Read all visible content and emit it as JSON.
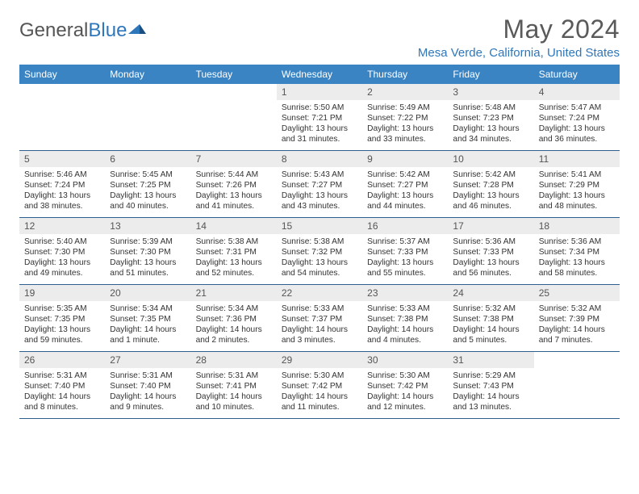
{
  "logo": {
    "text1": "General",
    "text2": "Blue"
  },
  "title": "May 2024",
  "location": "Mesa Verde, California, United States",
  "header_bg": "#3b84c4",
  "accent_color": "#2f77bb",
  "daynum_bg": "#ececec",
  "weekdays": [
    "Sunday",
    "Monday",
    "Tuesday",
    "Wednesday",
    "Thursday",
    "Friday",
    "Saturday"
  ],
  "weeks": [
    [
      {
        "n": "",
        "lines": []
      },
      {
        "n": "",
        "lines": []
      },
      {
        "n": "",
        "lines": []
      },
      {
        "n": "1",
        "lines": [
          "Sunrise: 5:50 AM",
          "Sunset: 7:21 PM",
          "Daylight: 13 hours",
          "and 31 minutes."
        ]
      },
      {
        "n": "2",
        "lines": [
          "Sunrise: 5:49 AM",
          "Sunset: 7:22 PM",
          "Daylight: 13 hours",
          "and 33 minutes."
        ]
      },
      {
        "n": "3",
        "lines": [
          "Sunrise: 5:48 AM",
          "Sunset: 7:23 PM",
          "Daylight: 13 hours",
          "and 34 minutes."
        ]
      },
      {
        "n": "4",
        "lines": [
          "Sunrise: 5:47 AM",
          "Sunset: 7:24 PM",
          "Daylight: 13 hours",
          "and 36 minutes."
        ]
      }
    ],
    [
      {
        "n": "5",
        "lines": [
          "Sunrise: 5:46 AM",
          "Sunset: 7:24 PM",
          "Daylight: 13 hours",
          "and 38 minutes."
        ]
      },
      {
        "n": "6",
        "lines": [
          "Sunrise: 5:45 AM",
          "Sunset: 7:25 PM",
          "Daylight: 13 hours",
          "and 40 minutes."
        ]
      },
      {
        "n": "7",
        "lines": [
          "Sunrise: 5:44 AM",
          "Sunset: 7:26 PM",
          "Daylight: 13 hours",
          "and 41 minutes."
        ]
      },
      {
        "n": "8",
        "lines": [
          "Sunrise: 5:43 AM",
          "Sunset: 7:27 PM",
          "Daylight: 13 hours",
          "and 43 minutes."
        ]
      },
      {
        "n": "9",
        "lines": [
          "Sunrise: 5:42 AM",
          "Sunset: 7:27 PM",
          "Daylight: 13 hours",
          "and 44 minutes."
        ]
      },
      {
        "n": "10",
        "lines": [
          "Sunrise: 5:42 AM",
          "Sunset: 7:28 PM",
          "Daylight: 13 hours",
          "and 46 minutes."
        ]
      },
      {
        "n": "11",
        "lines": [
          "Sunrise: 5:41 AM",
          "Sunset: 7:29 PM",
          "Daylight: 13 hours",
          "and 48 minutes."
        ]
      }
    ],
    [
      {
        "n": "12",
        "lines": [
          "Sunrise: 5:40 AM",
          "Sunset: 7:30 PM",
          "Daylight: 13 hours",
          "and 49 minutes."
        ]
      },
      {
        "n": "13",
        "lines": [
          "Sunrise: 5:39 AM",
          "Sunset: 7:30 PM",
          "Daylight: 13 hours",
          "and 51 minutes."
        ]
      },
      {
        "n": "14",
        "lines": [
          "Sunrise: 5:38 AM",
          "Sunset: 7:31 PM",
          "Daylight: 13 hours",
          "and 52 minutes."
        ]
      },
      {
        "n": "15",
        "lines": [
          "Sunrise: 5:38 AM",
          "Sunset: 7:32 PM",
          "Daylight: 13 hours",
          "and 54 minutes."
        ]
      },
      {
        "n": "16",
        "lines": [
          "Sunrise: 5:37 AM",
          "Sunset: 7:33 PM",
          "Daylight: 13 hours",
          "and 55 minutes."
        ]
      },
      {
        "n": "17",
        "lines": [
          "Sunrise: 5:36 AM",
          "Sunset: 7:33 PM",
          "Daylight: 13 hours",
          "and 56 minutes."
        ]
      },
      {
        "n": "18",
        "lines": [
          "Sunrise: 5:36 AM",
          "Sunset: 7:34 PM",
          "Daylight: 13 hours",
          "and 58 minutes."
        ]
      }
    ],
    [
      {
        "n": "19",
        "lines": [
          "Sunrise: 5:35 AM",
          "Sunset: 7:35 PM",
          "Daylight: 13 hours",
          "and 59 minutes."
        ]
      },
      {
        "n": "20",
        "lines": [
          "Sunrise: 5:34 AM",
          "Sunset: 7:35 PM",
          "Daylight: 14 hours",
          "and 1 minute."
        ]
      },
      {
        "n": "21",
        "lines": [
          "Sunrise: 5:34 AM",
          "Sunset: 7:36 PM",
          "Daylight: 14 hours",
          "and 2 minutes."
        ]
      },
      {
        "n": "22",
        "lines": [
          "Sunrise: 5:33 AM",
          "Sunset: 7:37 PM",
          "Daylight: 14 hours",
          "and 3 minutes."
        ]
      },
      {
        "n": "23",
        "lines": [
          "Sunrise: 5:33 AM",
          "Sunset: 7:38 PM",
          "Daylight: 14 hours",
          "and 4 minutes."
        ]
      },
      {
        "n": "24",
        "lines": [
          "Sunrise: 5:32 AM",
          "Sunset: 7:38 PM",
          "Daylight: 14 hours",
          "and 5 minutes."
        ]
      },
      {
        "n": "25",
        "lines": [
          "Sunrise: 5:32 AM",
          "Sunset: 7:39 PM",
          "Daylight: 14 hours",
          "and 7 minutes."
        ]
      }
    ],
    [
      {
        "n": "26",
        "lines": [
          "Sunrise: 5:31 AM",
          "Sunset: 7:40 PM",
          "Daylight: 14 hours",
          "and 8 minutes."
        ]
      },
      {
        "n": "27",
        "lines": [
          "Sunrise: 5:31 AM",
          "Sunset: 7:40 PM",
          "Daylight: 14 hours",
          "and 9 minutes."
        ]
      },
      {
        "n": "28",
        "lines": [
          "Sunrise: 5:31 AM",
          "Sunset: 7:41 PM",
          "Daylight: 14 hours",
          "and 10 minutes."
        ]
      },
      {
        "n": "29",
        "lines": [
          "Sunrise: 5:30 AM",
          "Sunset: 7:42 PM",
          "Daylight: 14 hours",
          "and 11 minutes."
        ]
      },
      {
        "n": "30",
        "lines": [
          "Sunrise: 5:30 AM",
          "Sunset: 7:42 PM",
          "Daylight: 14 hours",
          "and 12 minutes."
        ]
      },
      {
        "n": "31",
        "lines": [
          "Sunrise: 5:29 AM",
          "Sunset: 7:43 PM",
          "Daylight: 14 hours",
          "and 13 minutes."
        ]
      },
      {
        "n": "",
        "lines": []
      }
    ]
  ]
}
